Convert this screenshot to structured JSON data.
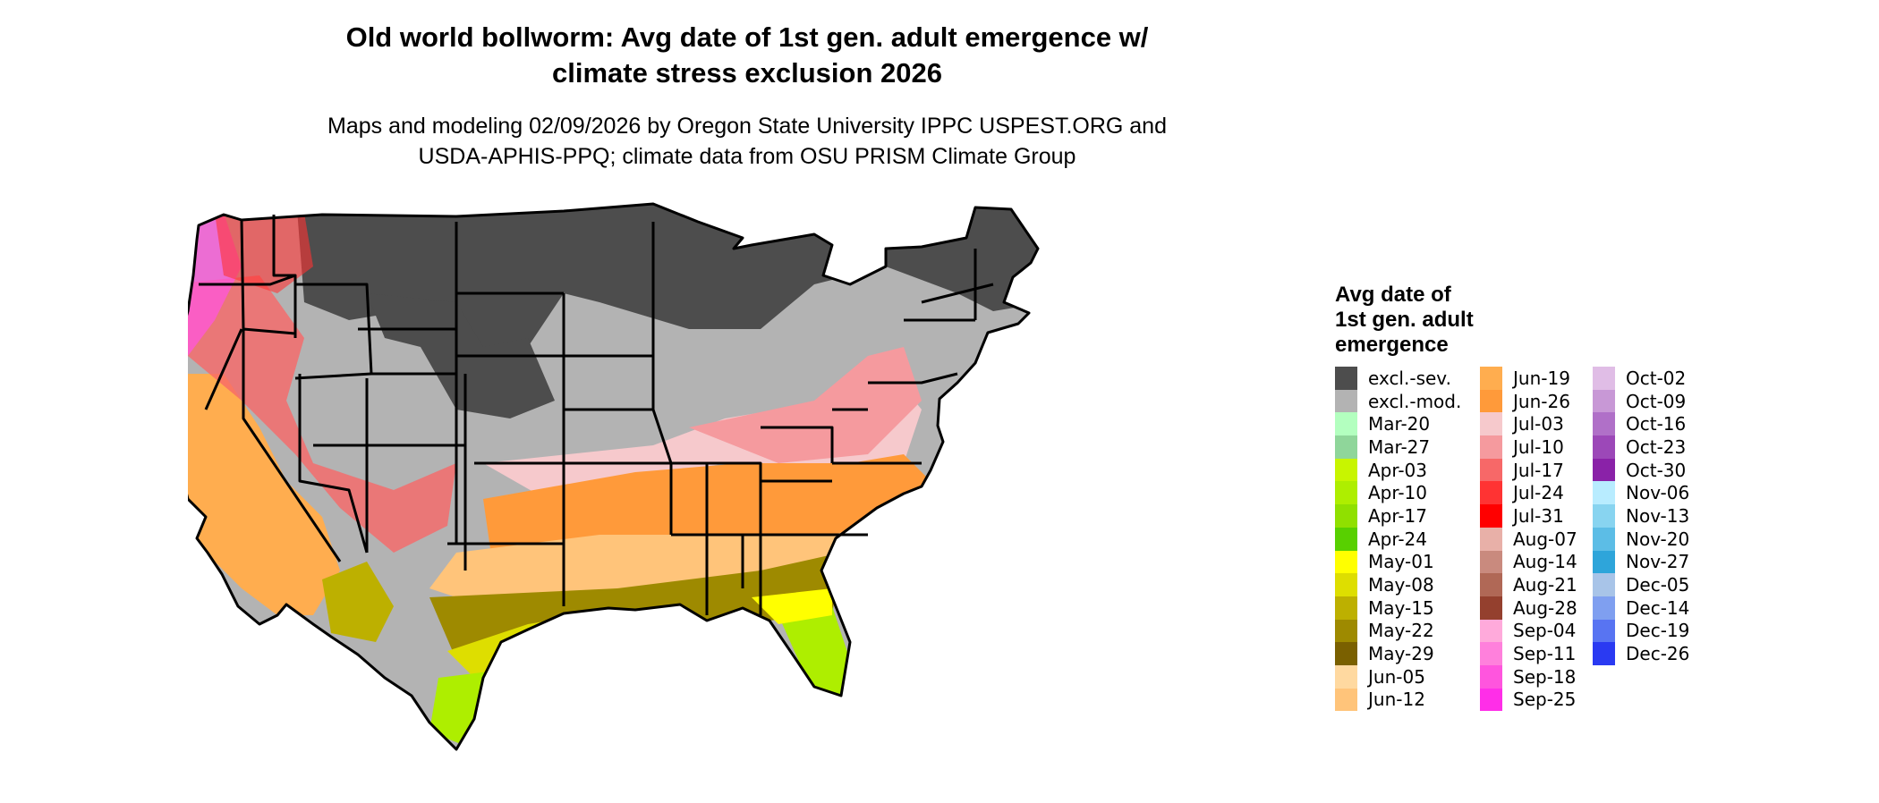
{
  "title_line1": "Old world bollworm: Avg date of 1st gen. adult emergence w/",
  "title_line2": "climate stress exclusion 2026",
  "subtitle_line1": "Maps and modeling 02/09/2026 by Oregon State University IPPC USPEST.ORG and",
  "subtitle_line2": "USDA-APHIS-PPQ; climate data from OSU PRISM Climate Group",
  "legend": {
    "title_line1": "Avg date of",
    "title_line2": "1st gen. adult",
    "title_line3": "emergence",
    "columns": [
      [
        {
          "label": "excl.-sev.",
          "color": "#4d4d4d"
        },
        {
          "label": "excl.-mod.",
          "color": "#b3b3b3"
        },
        {
          "label": "Mar-20",
          "color": "#b3ffbf"
        },
        {
          "label": "Mar-27",
          "color": "#8fd69a"
        },
        {
          "label": "Apr-03",
          "color": "#c8f500"
        },
        {
          "label": "Apr-10",
          "color": "#aeee00"
        },
        {
          "label": "Apr-17",
          "color": "#90e000"
        },
        {
          "label": "Apr-24",
          "color": "#58d000"
        },
        {
          "label": "May-01",
          "color": "#ffff00"
        },
        {
          "label": "May-08",
          "color": "#dede00"
        },
        {
          "label": "May-15",
          "color": "#bdb000"
        },
        {
          "label": "May-22",
          "color": "#9e8a00"
        },
        {
          "label": "May-29",
          "color": "#7a6000"
        },
        {
          "label": "Jun-05",
          "color": "#ffd9a0"
        },
        {
          "label": "Jun-12",
          "color": "#ffc47a"
        }
      ],
      [
        {
          "label": "Jun-19",
          "color": "#ffad4f"
        },
        {
          "label": "Jun-26",
          "color": "#ff9a3a"
        },
        {
          "label": "Jul-03",
          "color": "#f6c9cc"
        },
        {
          "label": "Jul-10",
          "color": "#f59a9e"
        },
        {
          "label": "Jul-17",
          "color": "#f76868"
        },
        {
          "label": "Jul-24",
          "color": "#ff3333"
        },
        {
          "label": "Jul-31",
          "color": "#ff0000"
        },
        {
          "label": "Aug-07",
          "color": "#e8b0a8"
        },
        {
          "label": "Aug-14",
          "color": "#c98a7e"
        },
        {
          "label": "Aug-21",
          "color": "#b06856"
        },
        {
          "label": "Aug-28",
          "color": "#94402e"
        },
        {
          "label": "Sep-04",
          "color": "#ffaadb"
        },
        {
          "label": "Sep-11",
          "color": "#ff80dc"
        },
        {
          "label": "Sep-18",
          "color": "#ff55de"
        },
        {
          "label": "Sep-25",
          "color": "#ff2ee8"
        }
      ],
      [
        {
          "label": "Oct-02",
          "color": "#e0bde6"
        },
        {
          "label": "Oct-09",
          "color": "#c898d6"
        },
        {
          "label": "Oct-16",
          "color": "#b070c8"
        },
        {
          "label": "Oct-23",
          "color": "#9c48b8"
        },
        {
          "label": "Oct-30",
          "color": "#8a22a8"
        },
        {
          "label": "Nov-06",
          "color": "#b8ecff"
        },
        {
          "label": "Nov-13",
          "color": "#88d4f0"
        },
        {
          "label": "Nov-20",
          "color": "#5cbde6"
        },
        {
          "label": "Nov-27",
          "color": "#2ea5da"
        },
        {
          "label": "Dec-05",
          "color": "#a8c4e8"
        },
        {
          "label": "Dec-14",
          "color": "#7f9ff0"
        },
        {
          "label": "Dec-19",
          "color": "#5874f2"
        },
        {
          "label": "Dec-26",
          "color": "#2a3af2"
        }
      ]
    ]
  }
}
